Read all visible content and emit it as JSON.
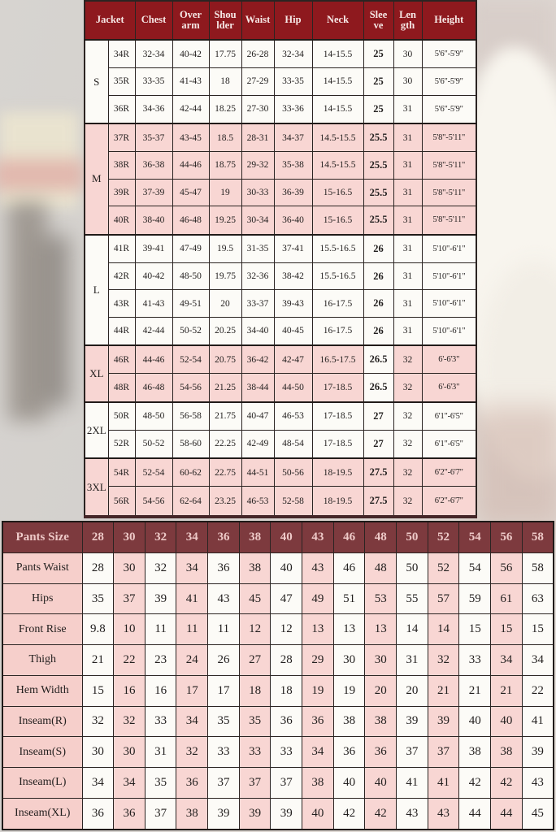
{
  "colors": {
    "jacket_header_bg": "#8e191e",
    "jacket_header_text": "#f6e8e6",
    "pants_header_bg": "#7d3a3e",
    "pants_header_text": "#eecac8",
    "pink_cell": "#f8d6d3",
    "white_cell": "#fcfbf7",
    "border": "#2b2422",
    "cell_text": "#221f1e"
  },
  "chart_data": [
    {
      "type": "table",
      "columns": [
        "Jacket",
        "Chest",
        "Over arm",
        "Shou lder",
        "Waist",
        "Hip",
        "Neck",
        "Slee ve",
        "Len gth",
        "Height"
      ],
      "groups": [
        {
          "label": "S",
          "rows": [
            [
              "34R",
              "32-34",
              "40-42",
              "17.75",
              "26-28",
              "32-34",
              "14-15.5",
              "25",
              "30",
              "5'6\"-5'9\""
            ],
            [
              "35R",
              "33-35",
              "41-43",
              "18",
              "27-29",
              "33-35",
              "14-15.5",
              "25",
              "30",
              "5'6\"-5'9\""
            ],
            [
              "36R",
              "34-36",
              "42-44",
              "18.25",
              "27-30",
              "33-36",
              "14-15.5",
              "25",
              "31",
              "5'6\"-5'9\""
            ]
          ]
        },
        {
          "label": "M",
          "rows": [
            [
              "37R",
              "35-37",
              "43-45",
              "18.5",
              "28-31",
              "34-37",
              "14.5-15.5",
              "25.5",
              "31",
              "5'8\"-5'11\""
            ],
            [
              "38R",
              "36-38",
              "44-46",
              "18.75",
              "29-32",
              "35-38",
              "14.5-15.5",
              "25.5",
              "31",
              "5'8\"-5'11\""
            ],
            [
              "39R",
              "37-39",
              "45-47",
              "19",
              "30-33",
              "36-39",
              "15-16.5",
              "25.5",
              "31",
              "5'8\"-5'11\""
            ],
            [
              "40R",
              "38-40",
              "46-48",
              "19.25",
              "30-34",
              "36-40",
              "15-16.5",
              "25.5",
              "31",
              "5'8\"-5'11\""
            ]
          ]
        },
        {
          "label": "L",
          "rows": [
            [
              "41R",
              "39-41",
              "47-49",
              "19.5",
              "31-35",
              "37-41",
              "15.5-16.5",
              "26",
              "31",
              "5'10\"-6'1\""
            ],
            [
              "42R",
              "40-42",
              "48-50",
              "19.75",
              "32-36",
              "38-42",
              "15.5-16.5",
              "26",
              "31",
              "5'10\"-6'1\""
            ],
            [
              "43R",
              "41-43",
              "49-51",
              "20",
              "33-37",
              "39-43",
              "16-17.5",
              "26",
              "31",
              "5'10\"-6'1\""
            ],
            [
              "44R",
              "42-44",
              "50-52",
              "20.25",
              "34-40",
              "40-45",
              "16-17.5",
              "26",
              "31",
              "5'10\"-6'1\""
            ]
          ]
        },
        {
          "label": "XL",
          "rows": [
            [
              "46R",
              "44-46",
              "52-54",
              "20.75",
              "36-42",
              "42-47",
              "16.5-17.5",
              "26.5",
              "32",
              "6'-6'3\""
            ],
            [
              "48R",
              "46-48",
              "54-56",
              "21.25",
              "38-44",
              "44-50",
              "17-18.5",
              "26.5",
              "32",
              "6'-6'3\""
            ]
          ]
        },
        {
          "label": "2XL",
          "rows": [
            [
              "50R",
              "48-50",
              "56-58",
              "21.75",
              "40-47",
              "46-53",
              "17-18.5",
              "27",
              "32",
              "6'1\"-6'5\""
            ],
            [
              "52R",
              "50-52",
              "58-60",
              "22.25",
              "42-49",
              "48-54",
              "17-18.5",
              "27",
              "32",
              "6'1\"-6'5\""
            ]
          ]
        },
        {
          "label": "3XL",
          "rows": [
            [
              "54R",
              "52-54",
              "60-62",
              "22.75",
              "44-51",
              "50-56",
              "18-19.5",
              "27.5",
              "32",
              "6'2\"-6'7\""
            ],
            [
              "56R",
              "54-56",
              "62-64",
              "23.25",
              "46-53",
              "52-58",
              "18-19.5",
              "27.5",
              "32",
              "6'2\"-6'7\""
            ]
          ]
        }
      ]
    },
    {
      "type": "table",
      "columns": [
        "Pants Size",
        "28",
        "30",
        "32",
        "34",
        "36",
        "38",
        "40",
        "43",
        "46",
        "48",
        "50",
        "52",
        "54",
        "56",
        "58"
      ],
      "rows": [
        {
          "label": "Pants Waist",
          "values": [
            "28",
            "30",
            "32",
            "34",
            "36",
            "38",
            "40",
            "43",
            "46",
            "48",
            "50",
            "52",
            "54",
            "56",
            "58"
          ]
        },
        {
          "label": "Hips",
          "values": [
            "35",
            "37",
            "39",
            "41",
            "43",
            "45",
            "47",
            "49",
            "51",
            "53",
            "55",
            "57",
            "59",
            "61",
            "63"
          ]
        },
        {
          "label": "Front Rise",
          "values": [
            "9.8",
            "10",
            "11",
            "11",
            "11",
            "12",
            "12",
            "13",
            "13",
            "13",
            "14",
            "14",
            "15",
            "15",
            "15"
          ]
        },
        {
          "label": "Thigh",
          "values": [
            "21",
            "22",
            "23",
            "24",
            "26",
            "27",
            "28",
            "29",
            "30",
            "30",
            "31",
            "32",
            "33",
            "34",
            "34"
          ]
        },
        {
          "label": "Hem Width",
          "values": [
            "15",
            "16",
            "16",
            "17",
            "17",
            "18",
            "18",
            "19",
            "19",
            "20",
            "20",
            "21",
            "21",
            "21",
            "22"
          ]
        },
        {
          "label": "Inseam(R)",
          "values": [
            "32",
            "32",
            "33",
            "34",
            "35",
            "35",
            "36",
            "36",
            "38",
            "38",
            "39",
            "39",
            "40",
            "40",
            "41"
          ]
        },
        {
          "label": "Inseam(S)",
          "values": [
            "30",
            "30",
            "31",
            "32",
            "33",
            "33",
            "33",
            "34",
            "36",
            "36",
            "37",
            "37",
            "38",
            "38",
            "39"
          ]
        },
        {
          "label": "Inseam(L)",
          "values": [
            "34",
            "34",
            "35",
            "36",
            "37",
            "37",
            "37",
            "38",
            "40",
            "40",
            "41",
            "41",
            "42",
            "42",
            "43"
          ]
        },
        {
          "label": "Inseam(XL)",
          "values": [
            "36",
            "36",
            "37",
            "38",
            "39",
            "39",
            "39",
            "40",
            "42",
            "42",
            "43",
            "43",
            "44",
            "44",
            "45"
          ]
        }
      ]
    }
  ]
}
